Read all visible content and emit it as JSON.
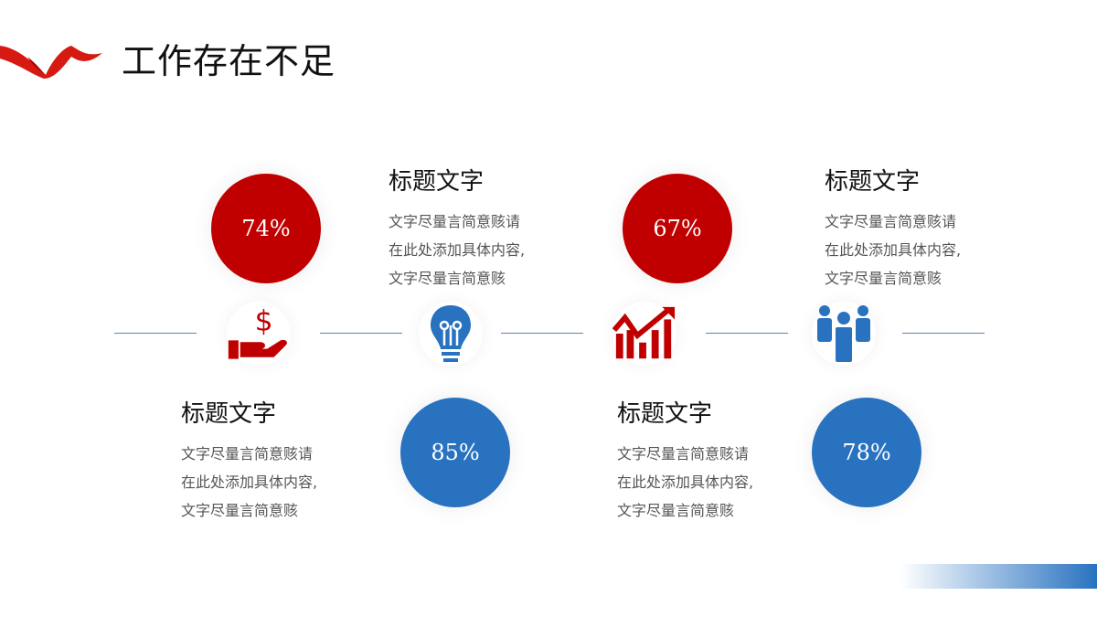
{
  "title": "工作存在不足",
  "colors": {
    "red": "#c00000",
    "blue": "#2872c0"
  },
  "items": [
    {
      "percent": "74%",
      "icon": "money-hand-icon",
      "heading": "标题文字",
      "lines": [
        "文字尽量言简意赅请",
        "在此处添加具体内容,",
        "文字尽量言简意赅"
      ]
    },
    {
      "percent": "85%",
      "icon": "lightbulb-icon",
      "heading": "标题文字",
      "lines": [
        "文字尽量言简意赅请",
        "在此处添加具体内容,",
        "文字尽量言简意赅"
      ]
    },
    {
      "percent": "67%",
      "icon": "growth-chart-icon",
      "heading": "标题文字",
      "lines": [
        "文字尽量言简意赅请",
        "在此处添加具体内容,",
        "文字尽量言简意赅"
      ]
    },
    {
      "percent": "78%",
      "icon": "team-icon",
      "heading": "标题文字",
      "lines": [
        "文字尽量言简意赅请",
        "在此处添加具体内容,",
        "文字尽量言简意赅"
      ]
    }
  ]
}
